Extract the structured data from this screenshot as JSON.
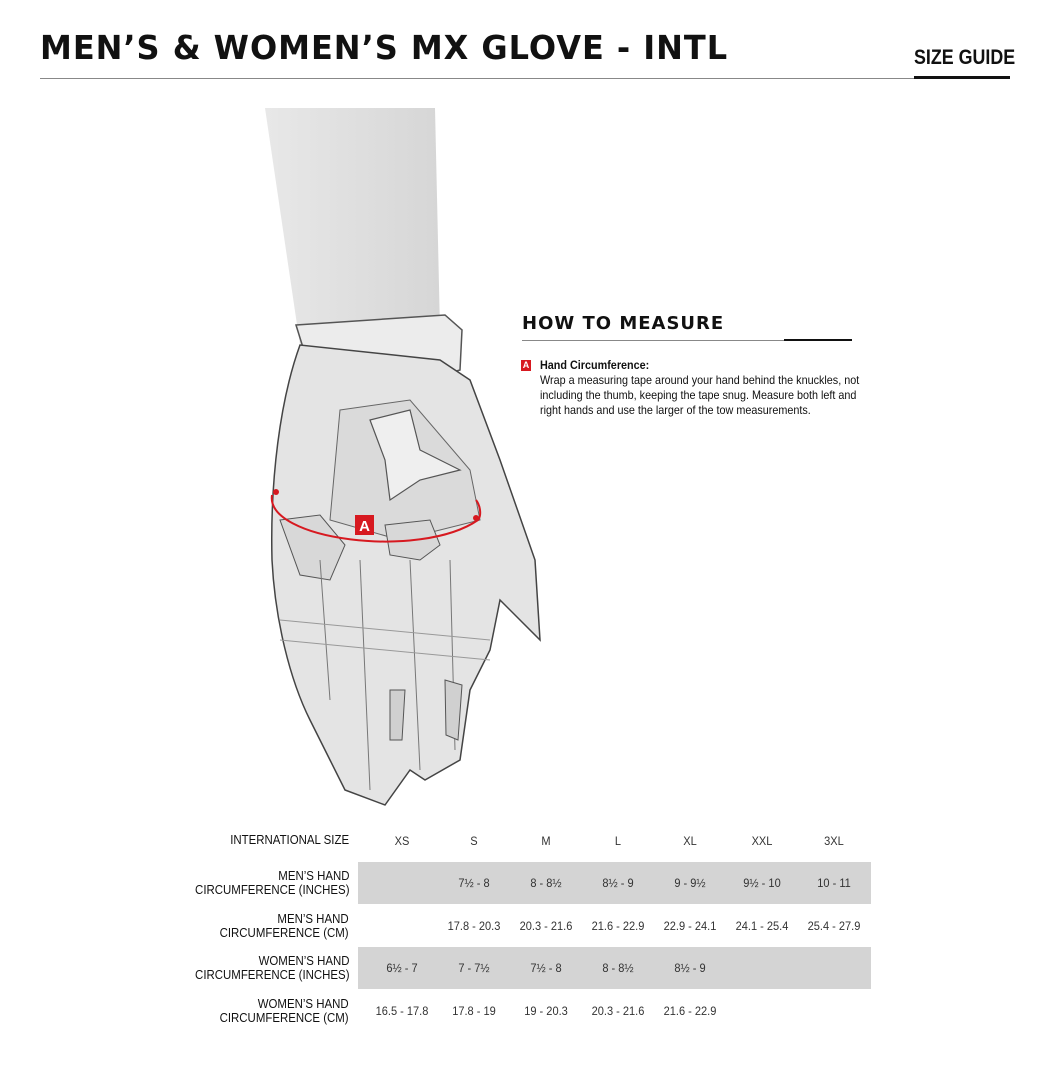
{
  "header": {
    "title": "MEN’S & WOMEN’S MX GLOVE - INTL",
    "section": "SIZE GUIDE"
  },
  "measure": {
    "heading": "HOW TO MEASURE",
    "marker": "A",
    "item_title": "Hand Circumference:",
    "item_text": "Wrap a measuring tape around your hand behind the knuckles, not including the thumb, keeping the tape snug. Measure both left and right hands and use the larger of the tow measurements.",
    "accent": "#d71920"
  },
  "table": {
    "header_label": "INTERNATIONAL SIZE",
    "sizes": [
      "XS",
      "S",
      "M",
      "L",
      "XL",
      "XXL",
      "3XL"
    ],
    "rows": [
      {
        "label1": "MEN’S HAND",
        "label2": "CIRCUMFERENCE (INCHES)",
        "shaded": true,
        "values": [
          "",
          "7½ - 8",
          "8 - 8½",
          "8½ - 9",
          "9 - 9½",
          "9½ - 10",
          "10 - 11"
        ]
      },
      {
        "label1": "MEN’S HAND",
        "label2": "CIRCUMFERENCE (CM)",
        "shaded": false,
        "values": [
          "",
          "17.8 - 20.3",
          "20.3 - 21.6",
          "21.6 - 22.9",
          "22.9 - 24.1",
          "24.1 - 25.4",
          "25.4 - 27.9"
        ]
      },
      {
        "label1": "WOMEN’S HAND",
        "label2": "CIRCUMFERENCE (INCHES)",
        "shaded": true,
        "values": [
          "6½ - 7",
          "7 - 7½",
          "7½ - 8",
          "8 - 8½",
          "8½ - 9",
          "",
          ""
        ]
      },
      {
        "label1": "WOMEN’S HAND",
        "label2": "CIRCUMFERENCE (CM)",
        "shaded": false,
        "values": [
          "16.5 - 17.8",
          "17.8 - 19",
          "19 - 20.3",
          "20.3 - 21.6",
          "21.6 - 22.9",
          "",
          ""
        ]
      }
    ]
  }
}
